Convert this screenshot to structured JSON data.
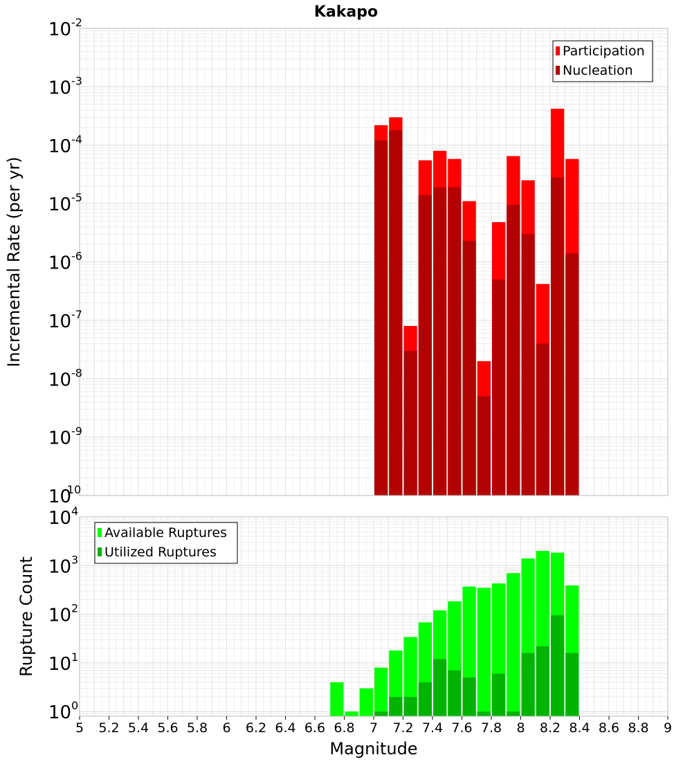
{
  "chart_data": [
    {
      "type": "bar",
      "title": "Kakapo",
      "ylabel": "Incremental Rate (per yr)",
      "xlabel": "",
      "xlim": [
        5,
        9
      ],
      "ylim": [
        1e-10,
        0.01
      ],
      "yscale": "log",
      "ytick_exponents": [
        "-2",
        "-3",
        "-4",
        "-5",
        "-6",
        "-7",
        "-8",
        "-9",
        "-10"
      ],
      "grid": true,
      "legend_position": "top-right",
      "bar_width": 0.1,
      "series": [
        {
          "name": "Participation",
          "color": "#ff0000",
          "x": [
            7.05,
            7.15,
            7.25,
            7.35,
            7.45,
            7.55,
            7.65,
            7.75,
            7.85,
            7.95,
            8.05,
            8.15,
            8.25,
            8.35
          ],
          "values": [
            0.00022,
            0.0003,
            8e-08,
            5.5e-05,
            8e-05,
            5.8e-05,
            1.1e-05,
            2e-08,
            4.8e-06,
            6.5e-05,
            2.5e-05,
            4.2e-07,
            0.00042,
            5.8e-05
          ]
        },
        {
          "name": "Nucleation",
          "color": "#b30000",
          "x": [
            7.05,
            7.15,
            7.25,
            7.35,
            7.45,
            7.55,
            7.65,
            7.75,
            7.85,
            7.95,
            8.05,
            8.15,
            8.25,
            8.35
          ],
          "values": [
            0.00012,
            0.00018,
            3e-08,
            1.4e-05,
            1.9e-05,
            1.9e-05,
            2.3e-06,
            5e-09,
            5e-07,
            9.5e-06,
            3e-06,
            4e-08,
            2.8e-05,
            1.4e-06
          ]
        }
      ]
    },
    {
      "type": "bar",
      "title": "",
      "ylabel": "Rupture Count",
      "xlabel": "Magnitude",
      "xlim": [
        5,
        9
      ],
      "ylim": [
        0.8,
        10000
      ],
      "yscale": "log",
      "ytick_exponents": [
        "4",
        "3",
        "2",
        "1",
        "0"
      ],
      "xticks": [
        "5",
        "5.2",
        "5.4",
        "5.6",
        "5.8",
        "6",
        "6.2",
        "6.4",
        "6.6",
        "6.8",
        "7",
        "7.2",
        "7.4",
        "7.6",
        "7.8",
        "8",
        "8.2",
        "8.4",
        "8.6",
        "8.8",
        "9"
      ],
      "grid": true,
      "legend_position": "top-left",
      "bar_width": 0.1,
      "series": [
        {
          "name": "Available Ruptures",
          "color": "#00ff00",
          "x": [
            6.75,
            6.85,
            6.95,
            7.05,
            7.15,
            7.25,
            7.35,
            7.45,
            7.55,
            7.65,
            7.75,
            7.85,
            7.95,
            8.05,
            8.15,
            8.25,
            8.35
          ],
          "values": [
            4,
            1,
            3,
            8,
            18,
            34,
            68,
            120,
            185,
            370,
            350,
            430,
            700,
            1400,
            2000,
            1850,
            390
          ]
        },
        {
          "name": "Utilized Ruptures",
          "color": "#00b300",
          "x": [
            7.05,
            7.15,
            7.25,
            7.35,
            7.45,
            7.55,
            7.65,
            7.75,
            7.85,
            7.95,
            8.05,
            8.15,
            8.25,
            8.35
          ],
          "values": [
            1,
            2,
            2,
            4,
            12,
            7,
            5,
            1,
            6,
            1,
            16,
            22,
            95,
            16
          ]
        }
      ]
    }
  ]
}
